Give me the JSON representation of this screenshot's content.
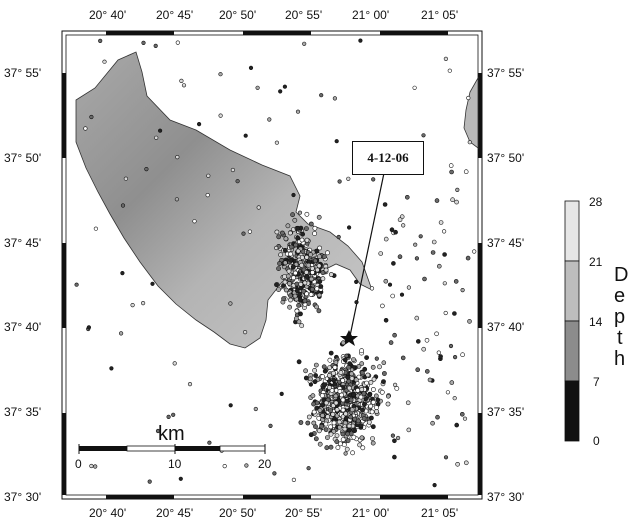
{
  "map": {
    "annotation": "4-12-06",
    "lon_labels": [
      "20° 40'",
      "20° 45'",
      "20° 50'",
      "20° 55'",
      "21° 00'",
      "21° 05'"
    ],
    "lat_labels": [
      "37° 55'",
      "37° 50'",
      "37° 45'",
      "37° 40'",
      "37° 35'",
      "37° 30'"
    ],
    "lon_range": [
      "20° 37'",
      "21° 07'"
    ],
    "lat_range": [
      "37° 30'",
      "37° 57'"
    ]
  },
  "scale_bar": {
    "unit": "km",
    "ticks": [
      "0",
      "10",
      "20"
    ]
  },
  "depth_scale": {
    "title_letters": [
      "D",
      "e",
      "p",
      "t",
      "h"
    ],
    "ticks": [
      "28",
      "21",
      "14",
      "7",
      "0"
    ],
    "colors": [
      "#e6e6e6",
      "#bdbdbd",
      "#8c8c8c",
      "#555555",
      "#111111"
    ]
  },
  "colors": {
    "land": "#b9b9b9",
    "land_dark": "#8e8e8e",
    "sea": "#ffffff",
    "frame": "#111111"
  }
}
